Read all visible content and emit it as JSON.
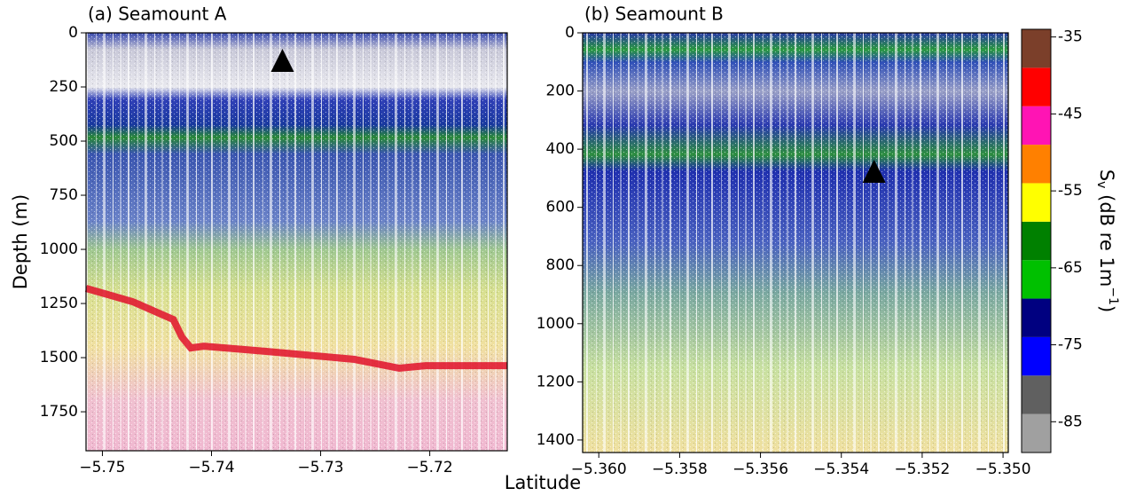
{
  "chart_data": [
    {
      "type": "echogram",
      "title": "(a) Seamount A",
      "ylabel": "Depth (m)",
      "xlabel": "Latitude",
      "xlim": [
        -5.7515,
        -5.7129
      ],
      "ylim": [
        1930,
        0
      ],
      "xticks": [
        {
          "value": -5.75,
          "label": "−5.75"
        },
        {
          "value": -5.74,
          "label": "−5.74"
        },
        {
          "value": -5.73,
          "label": "−5.73"
        },
        {
          "value": -5.72,
          "label": "−5.72"
        }
      ],
      "yticks": [
        0,
        250,
        500,
        750,
        1000,
        1250,
        1500,
        1750
      ],
      "markers": {
        "x": [
          -5.7335
        ],
        "y": [
          135
        ],
        "color": "#000000"
      },
      "seabed": {
        "x": [
          -5.7515,
          -5.7472,
          -5.7435,
          -5.7427,
          -5.7419,
          -5.7407,
          -5.735,
          -5.7269,
          -5.7228,
          -5.7204,
          -5.7129
        ],
        "y": [
          1180,
          1242,
          1324,
          1406,
          1455,
          1447,
          1471,
          1508,
          1549,
          1537,
          1537
        ],
        "color": "#e0102a"
      }
    },
    {
      "type": "echogram",
      "title": "(b) Seamount B",
      "xlim": [
        -5.3604,
        -5.34987
      ],
      "ylim": [
        1443,
        0
      ],
      "xticks": [
        {
          "value": -5.36,
          "label": "−5.360"
        },
        {
          "value": -5.358,
          "label": "−5.358"
        },
        {
          "value": -5.356,
          "label": "−5.356"
        },
        {
          "value": -5.354,
          "label": "−5.354"
        },
        {
          "value": -5.352,
          "label": "−5.352"
        },
        {
          "value": -5.35,
          "label": "−5.350"
        }
      ],
      "yticks": [
        0,
        200,
        400,
        600,
        800,
        1000,
        1200,
        1400
      ],
      "markers": {
        "x": [
          -5.35319
        ],
        "y": [
          482
        ],
        "color": "#000000"
      }
    },
    {
      "type": "colorbar",
      "label_main": "S",
      "label_sub": "v",
      "label_mid": " (dB re 1m",
      "label_sup": "−1",
      "label_end": ")",
      "ylim": [
        -89,
        -34
      ],
      "bins": [
        -89,
        -84,
        -79,
        -74,
        -69,
        -64,
        -59,
        -54,
        -49,
        -44,
        -39,
        -34
      ],
      "colors": [
        "#a0a0a0",
        "#606060",
        "#0000ff",
        "#000080",
        "#00c000",
        "#008000",
        "#ffff00",
        "#ff8000",
        "#ff14b4",
        "#ff0000",
        "#7b3f2a"
      ],
      "yticks": [
        -85,
        -75,
        -65,
        -55,
        -45,
        -35
      ]
    }
  ]
}
